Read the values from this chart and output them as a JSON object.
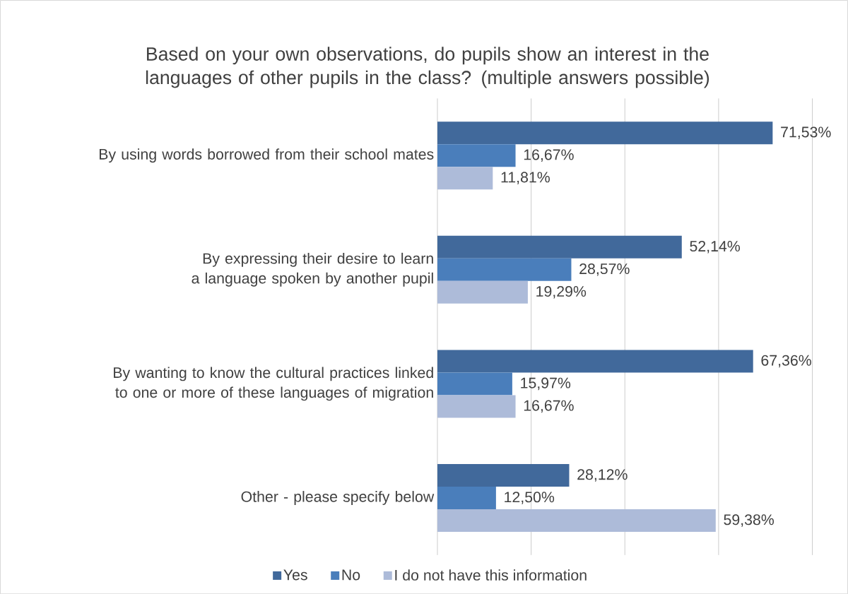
{
  "chart_data": {
    "type": "bar",
    "orientation": "horizontal",
    "title": "Based on your own observations, do pupils show an interest in the languages of other pupils in the class? (multiple answers possible)",
    "categories": [
      "By using words borrowed from their school mates",
      "By expressing their desire to learn a language spoken by another pupil",
      "By wanting to know the cultural practices linked to one or more of these languages of migration",
      "Other - please specify below"
    ],
    "series": [
      {
        "name": "Yes",
        "color": "#41699b",
        "values": [
          71.53,
          52.14,
          67.36,
          28.12
        ],
        "value_labels": [
          "71,53%",
          "52,14%",
          "67,36%",
          "28,12%"
        ]
      },
      {
        "name": "No",
        "color": "#4a7ebb",
        "values": [
          16.67,
          28.57,
          15.97,
          12.5
        ],
        "value_labels": [
          "16,67%",
          "28,57%",
          "15,97%",
          "12,50%"
        ]
      },
      {
        "name": "I do not have this information",
        "color": "#adbbd9",
        "values": [
          11.81,
          19.29,
          16.67,
          59.38
        ],
        "value_labels": [
          "11,81%",
          "19,29%",
          "16,67%",
          "59,38%"
        ]
      }
    ],
    "xlim": [
      0,
      80
    ],
    "xticks": [
      {
        "value": 0,
        "label": null
      },
      {
        "value": 20,
        "label": null
      },
      {
        "value": 40,
        "label": null
      },
      {
        "value": 60,
        "label": null
      },
      {
        "value": 80,
        "label": null
      }
    ],
    "grid": "x",
    "tick_labels": "y",
    "legend": "bottom"
  }
}
